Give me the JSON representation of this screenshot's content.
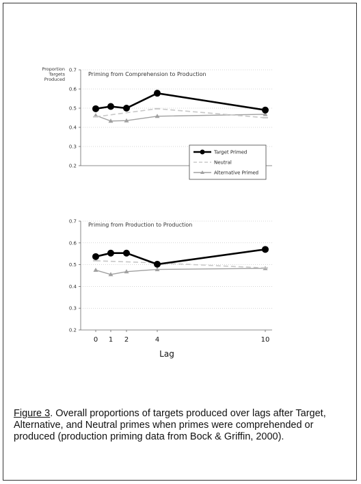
{
  "chart_data": [
    {
      "type": "line",
      "title": "Priming from Comprehension to Production",
      "ylabel": [
        "Proportion",
        "Targets",
        "Produced"
      ],
      "xlabel": "",
      "x": [
        0,
        1,
        2,
        4,
        10
      ],
      "ylim": [
        0.2,
        0.7
      ],
      "yticks": [
        "0.2",
        "0.3",
        "0.4",
        "0.5",
        "0.6",
        "0.7"
      ],
      "grid": "horizontal dotted",
      "legend": "bottom-right",
      "series": [
        {
          "name": "Target Primed",
          "color": "#000000",
          "marker": "circle",
          "style": "solid",
          "values": [
            0.497,
            0.509,
            0.5,
            0.578,
            0.49
          ]
        },
        {
          "name": "Neutral",
          "color": "#c8c8c8",
          "marker": "dash",
          "style": "dashed",
          "values": [
            0.455,
            null,
            null,
            0.497,
            0.45
          ]
        },
        {
          "name": "Alternative Primed",
          "color": "#a0a0a0",
          "marker": "triangle",
          "style": "solid",
          "values": [
            0.462,
            0.433,
            0.435,
            0.458,
            0.468
          ]
        }
      ]
    },
    {
      "type": "line",
      "title": "Priming from Production to Production",
      "xlabel": "Lag",
      "x": [
        0,
        1,
        2,
        4,
        10
      ],
      "xticks": [
        "0",
        "1",
        "2",
        "4",
        "10"
      ],
      "ylim": [
        0.2,
        0.7
      ],
      "yticks": [
        "0.2",
        "0.3",
        "0.4",
        "0.5",
        "0.6",
        "0.7"
      ],
      "grid": "horizontal dotted",
      "series": [
        {
          "name": "Target Primed",
          "color": "#000000",
          "marker": "circle",
          "style": "solid",
          "values": [
            0.537,
            0.553,
            0.553,
            0.502,
            0.57
          ]
        },
        {
          "name": "Neutral",
          "color": "#c8c8c8",
          "marker": "dash",
          "style": "dashed",
          "values": [
            0.518,
            null,
            null,
            0.508,
            0.485
          ]
        },
        {
          "name": "Alternative Primed",
          "color": "#a0a0a0",
          "marker": "triangle",
          "style": "solid",
          "values": [
            0.475,
            0.455,
            0.468,
            0.478,
            0.483
          ]
        }
      ]
    }
  ],
  "caption": {
    "label": "Figure 3",
    "text": ". Overall proportions of targets produced over lags after Target, Alternative, and Neutral primes when primes were comprehended or produced (production priming data from Bock & Griffin, 2000)."
  }
}
